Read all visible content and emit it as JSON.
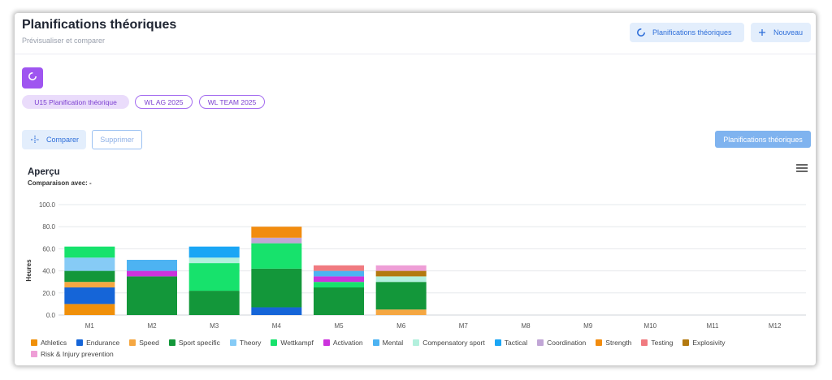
{
  "header": {
    "title": "Planifications théoriques",
    "subtitle": "Prévisualiser et comparer",
    "plan_button": "Planifications théoriques",
    "new_button": "Nouveau"
  },
  "chips": [
    {
      "label": "U15 Planification théorique",
      "active": true
    },
    {
      "label": "WL AG 2025",
      "active": false
    },
    {
      "label": "WL TEAM 2025",
      "active": false
    }
  ],
  "toolbar": {
    "compare_label": "Comparer",
    "delete_label": "Supprimer",
    "plan_label": "Planifications théoriques"
  },
  "chart_section": {
    "title": "Aperçu",
    "comparison": "Comparaison avec: -"
  },
  "chart_data": {
    "type": "bar",
    "stacked": true,
    "categories": [
      "M1",
      "M2",
      "M3",
      "M4",
      "M5",
      "M6",
      "M7",
      "M8",
      "M9",
      "M10",
      "M11",
      "M12"
    ],
    "ylabel": "Heures",
    "ylim": [
      0,
      100
    ],
    "yticks": [
      "0.0",
      "20.0",
      "40.0",
      "60.0",
      "80.0",
      "100.0"
    ],
    "grid": true,
    "legend_position": "bottom",
    "series": [
      {
        "name": "Athletics",
        "color": "#f0900a",
        "values": [
          10,
          0,
          0,
          0,
          0,
          0,
          0,
          0,
          0,
          0,
          0,
          0
        ]
      },
      {
        "name": "Endurance",
        "color": "#1565d8",
        "values": [
          15,
          0,
          0,
          7,
          0,
          0,
          0,
          0,
          0,
          0,
          0,
          0
        ]
      },
      {
        "name": "Speed",
        "color": "#f5a742",
        "values": [
          5,
          0,
          0,
          0,
          0,
          5,
          0,
          0,
          0,
          0,
          0,
          0
        ]
      },
      {
        "name": "Sport specific",
        "color": "#13973a",
        "values": [
          10,
          35,
          22,
          35,
          25,
          25,
          0,
          0,
          0,
          0,
          0,
          0
        ]
      },
      {
        "name": "Theory",
        "color": "#86cbf6",
        "values": [
          12,
          0,
          0,
          0,
          0,
          0,
          0,
          0,
          0,
          0,
          0,
          0
        ]
      },
      {
        "name": "Wettkampf",
        "color": "#17e26c",
        "values": [
          10,
          0,
          25,
          23,
          5,
          0,
          0,
          0,
          0,
          0,
          0,
          0
        ]
      },
      {
        "name": "Activation",
        "color": "#cc33dd",
        "values": [
          0,
          5,
          0,
          0,
          5,
          0,
          0,
          0,
          0,
          0,
          0,
          0
        ]
      },
      {
        "name": "Mental",
        "color": "#4db3f2",
        "values": [
          0,
          10,
          0,
          0,
          5,
          0,
          0,
          0,
          0,
          0,
          0,
          0
        ]
      },
      {
        "name": "Compensatory sport",
        "color": "#b3f0dd",
        "values": [
          0,
          0,
          5,
          0,
          0,
          5,
          0,
          0,
          0,
          0,
          0,
          0
        ]
      },
      {
        "name": "Tactical",
        "color": "#1aa6f5",
        "values": [
          0,
          0,
          10,
          0,
          0,
          0,
          0,
          0,
          0,
          0,
          0,
          0
        ]
      },
      {
        "name": "Coordination",
        "color": "#c1a6d6",
        "values": [
          0,
          0,
          0,
          5,
          0,
          0,
          0,
          0,
          0,
          0,
          0,
          0
        ]
      },
      {
        "name": "Strength",
        "color": "#f28c0e",
        "values": [
          0,
          0,
          0,
          10,
          0,
          0,
          0,
          0,
          0,
          0,
          0,
          0
        ]
      },
      {
        "name": "Testing",
        "color": "#f07a80",
        "values": [
          0,
          0,
          0,
          0,
          5,
          0,
          0,
          0,
          0,
          0,
          0,
          0
        ]
      },
      {
        "name": "Explosivity",
        "color": "#b3790f",
        "values": [
          0,
          0,
          0,
          0,
          0,
          5,
          0,
          0,
          0,
          0,
          0,
          0
        ]
      },
      {
        "name": "Risk & Injury prevention",
        "color": "#ee9ed6",
        "values": [
          0,
          0,
          0,
          0,
          0,
          5,
          0,
          0,
          0,
          0,
          0,
          0
        ]
      }
    ]
  }
}
